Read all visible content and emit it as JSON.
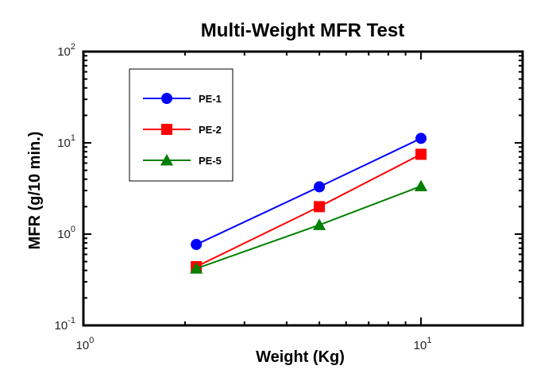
{
  "chart_data": {
    "type": "line",
    "title": "Multi-Weight MFR Test",
    "xlabel": "Weight (Kg)",
    "ylabel": "MFR (g/10 min.)",
    "x_scale": "log",
    "y_scale": "log",
    "xlim": [
      1,
      20
    ],
    "ylim": [
      0.1,
      100
    ],
    "x_ticks": [
      {
        "base": "10",
        "exp": "0",
        "value": 1
      },
      {
        "base": "10",
        "exp": "1",
        "value": 10
      }
    ],
    "y_ticks": [
      {
        "base": "10",
        "exp": "-1",
        "value": 0.1
      },
      {
        "base": "10",
        "exp": "0",
        "value": 1
      },
      {
        "base": "10",
        "exp": "1",
        "value": 10
      },
      {
        "base": "10",
        "exp": "2",
        "value": 100
      }
    ],
    "grid": false,
    "legend_position": "top-left",
    "series": [
      {
        "name": "PE-1",
        "color": "#0000ff",
        "marker": "circle",
        "x": [
          2.16,
          5,
          10
        ],
        "y": [
          0.77,
          3.3,
          11.2
        ]
      },
      {
        "name": "PE-2",
        "color": "#ff0000",
        "marker": "square",
        "x": [
          2.16,
          5,
          10
        ],
        "y": [
          0.44,
          2.0,
          7.5
        ]
      },
      {
        "name": "PE-5",
        "color": "#008000",
        "marker": "triangle",
        "x": [
          2.16,
          5,
          10
        ],
        "y": [
          0.42,
          1.26,
          3.35
        ]
      }
    ]
  }
}
